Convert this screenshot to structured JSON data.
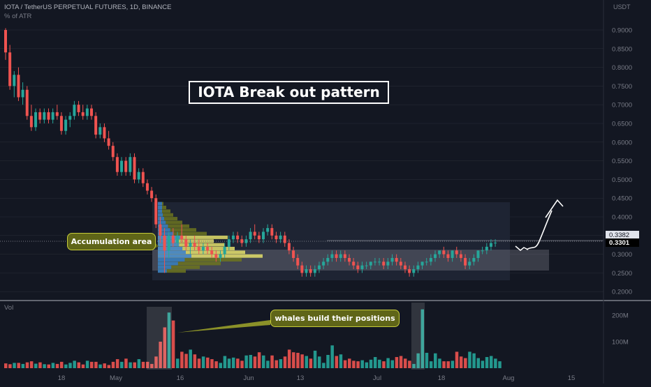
{
  "header": {
    "symbol_line": "IOTA / TetherUS PERPETUAL FUTURES, 1D, BINANCE",
    "indicator_line": "% of ATR"
  },
  "volume_pane": {
    "title": "Vol"
  },
  "annotations": {
    "title": "IOTA Break out pattern",
    "accumulation_label": "Accumulation area",
    "whales_label": "whales build their positions"
  },
  "price_axis": {
    "currency": "USDT",
    "ticks": [
      "0.9000",
      "0.8500",
      "0.8000",
      "0.7500",
      "0.7000",
      "0.6500",
      "0.6000",
      "0.5500",
      "0.5000",
      "0.4500",
      "0.4000",
      "0.3500",
      "0.3000",
      "0.2500",
      "0.2000"
    ],
    "marker_upper": "0.3382",
    "marker_last": "0.3301"
  },
  "volume_axis": {
    "ticks": [
      "200M",
      "100M"
    ]
  },
  "time_axis": {
    "ticks": [
      "18",
      "May",
      "16",
      "Jun",
      "13",
      "Jul",
      "18",
      "Aug",
      "15"
    ]
  },
  "colors": {
    "up": "#26a69a",
    "down": "#ef5350",
    "background": "#131722",
    "grid": "#2a2e39"
  },
  "chart_data": {
    "type": "candlestick",
    "title": "IOTA Break out pattern",
    "y_range": [
      0.18,
      0.94
    ],
    "volume_range_millions": [
      0,
      260
    ],
    "candles": [
      [
        0.9,
        0.905,
        0.82,
        0.84
      ],
      [
        0.84,
        0.86,
        0.74,
        0.75
      ],
      [
        0.75,
        0.79,
        0.72,
        0.78
      ],
      [
        0.78,
        0.8,
        0.71,
        0.72
      ],
      [
        0.72,
        0.76,
        0.7,
        0.74
      ],
      [
        0.74,
        0.75,
        0.66,
        0.67
      ],
      [
        0.67,
        0.7,
        0.63,
        0.64
      ],
      [
        0.64,
        0.69,
        0.63,
        0.68
      ],
      [
        0.68,
        0.69,
        0.65,
        0.66
      ],
      [
        0.66,
        0.69,
        0.65,
        0.68
      ],
      [
        0.68,
        0.69,
        0.65,
        0.66
      ],
      [
        0.66,
        0.69,
        0.65,
        0.68
      ],
      [
        0.68,
        0.7,
        0.66,
        0.67
      ],
      [
        0.67,
        0.68,
        0.62,
        0.63
      ],
      [
        0.63,
        0.67,
        0.62,
        0.66
      ],
      [
        0.66,
        0.68,
        0.64,
        0.67
      ],
      [
        0.67,
        0.71,
        0.66,
        0.7
      ],
      [
        0.7,
        0.71,
        0.67,
        0.68
      ],
      [
        0.68,
        0.7,
        0.66,
        0.67
      ],
      [
        0.67,
        0.7,
        0.66,
        0.69
      ],
      [
        0.69,
        0.7,
        0.66,
        0.67
      ],
      [
        0.67,
        0.68,
        0.61,
        0.62
      ],
      [
        0.62,
        0.65,
        0.61,
        0.64
      ],
      [
        0.64,
        0.65,
        0.6,
        0.61
      ],
      [
        0.61,
        0.63,
        0.58,
        0.59
      ],
      [
        0.59,
        0.6,
        0.55,
        0.56
      ],
      [
        0.56,
        0.57,
        0.51,
        0.52
      ],
      [
        0.52,
        0.56,
        0.51,
        0.55
      ],
      [
        0.55,
        0.56,
        0.51,
        0.52
      ],
      [
        0.52,
        0.57,
        0.51,
        0.56
      ],
      [
        0.56,
        0.57,
        0.49,
        0.5
      ],
      [
        0.5,
        0.53,
        0.49,
        0.52
      ],
      [
        0.52,
        0.53,
        0.48,
        0.49
      ],
      [
        0.49,
        0.5,
        0.46,
        0.47
      ],
      [
        0.47,
        0.48,
        0.44,
        0.45
      ],
      [
        0.45,
        0.46,
        0.37,
        0.38
      ],
      [
        0.38,
        0.4,
        0.33,
        0.35
      ],
      [
        0.35,
        0.37,
        0.25,
        0.31
      ],
      [
        0.31,
        0.36,
        0.29,
        0.35
      ],
      [
        0.35,
        0.37,
        0.32,
        0.33
      ],
      [
        0.33,
        0.36,
        0.32,
        0.35
      ],
      [
        0.35,
        0.38,
        0.33,
        0.34
      ],
      [
        0.34,
        0.35,
        0.31,
        0.32
      ],
      [
        0.32,
        0.34,
        0.3,
        0.33
      ],
      [
        0.33,
        0.35,
        0.31,
        0.32
      ],
      [
        0.32,
        0.34,
        0.3,
        0.31
      ],
      [
        0.31,
        0.33,
        0.3,
        0.32
      ],
      [
        0.32,
        0.33,
        0.3,
        0.31
      ],
      [
        0.31,
        0.32,
        0.29,
        0.3
      ],
      [
        0.3,
        0.31,
        0.28,
        0.29
      ],
      [
        0.29,
        0.31,
        0.28,
        0.3
      ],
      [
        0.3,
        0.33,
        0.29,
        0.32
      ],
      [
        0.32,
        0.35,
        0.31,
        0.34
      ],
      [
        0.34,
        0.36,
        0.33,
        0.35
      ],
      [
        0.35,
        0.36,
        0.33,
        0.34
      ],
      [
        0.34,
        0.35,
        0.32,
        0.33
      ],
      [
        0.33,
        0.35,
        0.32,
        0.34
      ],
      [
        0.34,
        0.37,
        0.33,
        0.36
      ],
      [
        0.36,
        0.38,
        0.34,
        0.35
      ],
      [
        0.35,
        0.36,
        0.33,
        0.34
      ],
      [
        0.34,
        0.37,
        0.33,
        0.36
      ],
      [
        0.36,
        0.38,
        0.35,
        0.37
      ],
      [
        0.37,
        0.38,
        0.34,
        0.35
      ],
      [
        0.35,
        0.36,
        0.33,
        0.34
      ],
      [
        0.34,
        0.36,
        0.33,
        0.35
      ],
      [
        0.35,
        0.36,
        0.32,
        0.33
      ],
      [
        0.33,
        0.34,
        0.3,
        0.31
      ],
      [
        0.31,
        0.32,
        0.28,
        0.29
      ],
      [
        0.29,
        0.3,
        0.26,
        0.27
      ],
      [
        0.27,
        0.28,
        0.24,
        0.25
      ],
      [
        0.25,
        0.27,
        0.24,
        0.26
      ],
      [
        0.26,
        0.27,
        0.24,
        0.25
      ],
      [
        0.25,
        0.27,
        0.24,
        0.26
      ],
      [
        0.26,
        0.28,
        0.25,
        0.27
      ],
      [
        0.27,
        0.29,
        0.26,
        0.28
      ],
      [
        0.28,
        0.3,
        0.27,
        0.29
      ],
      [
        0.29,
        0.31,
        0.28,
        0.3
      ],
      [
        0.3,
        0.31,
        0.28,
        0.29
      ],
      [
        0.29,
        0.31,
        0.28,
        0.3
      ],
      [
        0.3,
        0.31,
        0.28,
        0.29
      ],
      [
        0.29,
        0.3,
        0.27,
        0.28
      ],
      [
        0.28,
        0.29,
        0.26,
        0.27
      ],
      [
        0.27,
        0.28,
        0.25,
        0.26
      ],
      [
        0.26,
        0.28,
        0.25,
        0.27
      ],
      [
        0.27,
        0.28,
        0.26,
        0.27
      ],
      [
        0.27,
        0.28,
        0.26,
        0.28
      ],
      [
        0.28,
        0.29,
        0.27,
        0.28
      ],
      [
        0.28,
        0.29,
        0.27,
        0.28
      ],
      [
        0.28,
        0.29,
        0.26,
        0.27
      ],
      [
        0.27,
        0.29,
        0.26,
        0.28
      ],
      [
        0.28,
        0.3,
        0.27,
        0.29
      ],
      [
        0.29,
        0.3,
        0.27,
        0.28
      ],
      [
        0.28,
        0.29,
        0.26,
        0.27
      ],
      [
        0.27,
        0.28,
        0.25,
        0.26
      ],
      [
        0.26,
        0.27,
        0.24,
        0.25
      ],
      [
        0.25,
        0.27,
        0.24,
        0.26
      ],
      [
        0.26,
        0.28,
        0.25,
        0.27
      ],
      [
        0.27,
        0.28,
        0.26,
        0.28
      ],
      [
        0.28,
        0.29,
        0.27,
        0.28
      ],
      [
        0.28,
        0.3,
        0.27,
        0.29
      ],
      [
        0.29,
        0.31,
        0.28,
        0.3
      ],
      [
        0.3,
        0.31,
        0.29,
        0.31
      ],
      [
        0.31,
        0.32,
        0.29,
        0.3
      ],
      [
        0.3,
        0.31,
        0.28,
        0.29
      ],
      [
        0.29,
        0.31,
        0.28,
        0.31
      ],
      [
        0.31,
        0.32,
        0.29,
        0.3
      ],
      [
        0.3,
        0.31,
        0.28,
        0.29
      ],
      [
        0.29,
        0.3,
        0.26,
        0.27
      ],
      [
        0.27,
        0.29,
        0.26,
        0.28
      ],
      [
        0.28,
        0.3,
        0.27,
        0.29
      ],
      [
        0.29,
        0.31,
        0.28,
        0.31
      ],
      [
        0.31,
        0.32,
        0.3,
        0.31
      ],
      [
        0.31,
        0.33,
        0.3,
        0.32
      ],
      [
        0.32,
        0.34,
        0.31,
        0.33
      ],
      [
        0.33,
        0.34,
        0.32,
        0.331
      ]
    ],
    "volumes_millions": [
      18,
      15,
      20,
      20,
      16,
      22,
      26,
      17,
      22,
      15,
      14,
      20,
      16,
      24,
      14,
      20,
      28,
      22,
      14,
      28,
      24,
      24,
      14,
      18,
      12,
      24,
      34,
      24,
      36,
      22,
      22,
      34,
      24,
      24,
      16,
      44,
      100,
      154,
      210,
      180,
      36,
      62,
      54,
      70,
      52,
      36,
      44,
      40,
      34,
      26,
      20,
      46,
      36,
      40,
      36,
      28,
      48,
      50,
      44,
      60,
      48,
      28,
      48,
      30,
      34,
      44,
      70,
      60,
      58,
      52,
      46,
      36,
      66,
      44,
      20,
      50,
      86,
      46,
      52,
      30,
      36,
      28,
      26,
      30,
      22,
      32,
      42,
      32,
      26,
      38,
      30,
      42,
      46,
      36,
      28,
      16,
      56,
      222,
      58,
      26,
      56,
      36,
      26,
      26,
      28,
      62,
      44,
      38,
      62,
      56,
      38,
      28,
      42,
      46,
      36,
      26
    ]
  }
}
